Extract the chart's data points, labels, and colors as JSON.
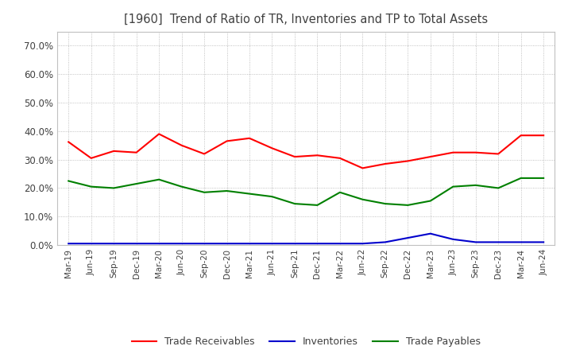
{
  "title": "[1960]  Trend of Ratio of TR, Inventories and TP to Total Assets",
  "title_color": "#404040",
  "background_color": "#ffffff",
  "plot_bg_color": "#ffffff",
  "grid_color": "#b0b0b0",
  "ylim": [
    0,
    0.75
  ],
  "yticks": [
    0.0,
    0.1,
    0.2,
    0.3,
    0.4,
    0.5,
    0.6,
    0.7
  ],
  "x_labels": [
    "Mar-19",
    "Jun-19",
    "Sep-19",
    "Dec-19",
    "Mar-20",
    "Jun-20",
    "Sep-20",
    "Dec-20",
    "Mar-21",
    "Jun-21",
    "Sep-21",
    "Dec-21",
    "Mar-22",
    "Jun-22",
    "Sep-22",
    "Dec-22",
    "Mar-23",
    "Jun-23",
    "Sep-23",
    "Dec-23",
    "Mar-24",
    "Jun-24"
  ],
  "trade_receivables": [
    0.362,
    0.305,
    0.33,
    0.325,
    0.39,
    0.35,
    0.32,
    0.365,
    0.375,
    0.34,
    0.31,
    0.315,
    0.305,
    0.27,
    0.285,
    0.295,
    0.31,
    0.325,
    0.325,
    0.32,
    0.385,
    0.385
  ],
  "inventories": [
    0.005,
    0.005,
    0.005,
    0.005,
    0.005,
    0.005,
    0.005,
    0.005,
    0.005,
    0.005,
    0.005,
    0.005,
    0.005,
    0.005,
    0.01,
    0.025,
    0.04,
    0.02,
    0.01,
    0.01,
    0.01,
    0.01
  ],
  "trade_payables": [
    0.225,
    0.205,
    0.2,
    0.215,
    0.23,
    0.205,
    0.185,
    0.19,
    0.18,
    0.17,
    0.145,
    0.14,
    0.185,
    0.16,
    0.145,
    0.14,
    0.155,
    0.205,
    0.21,
    0.2,
    0.235,
    0.235
  ],
  "tr_color": "#ff0000",
  "inv_color": "#0000cc",
  "tp_color": "#008000",
  "legend_labels": [
    "Trade Receivables",
    "Inventories",
    "Trade Payables"
  ],
  "figsize": [
    7.2,
    4.4
  ],
  "dpi": 100
}
